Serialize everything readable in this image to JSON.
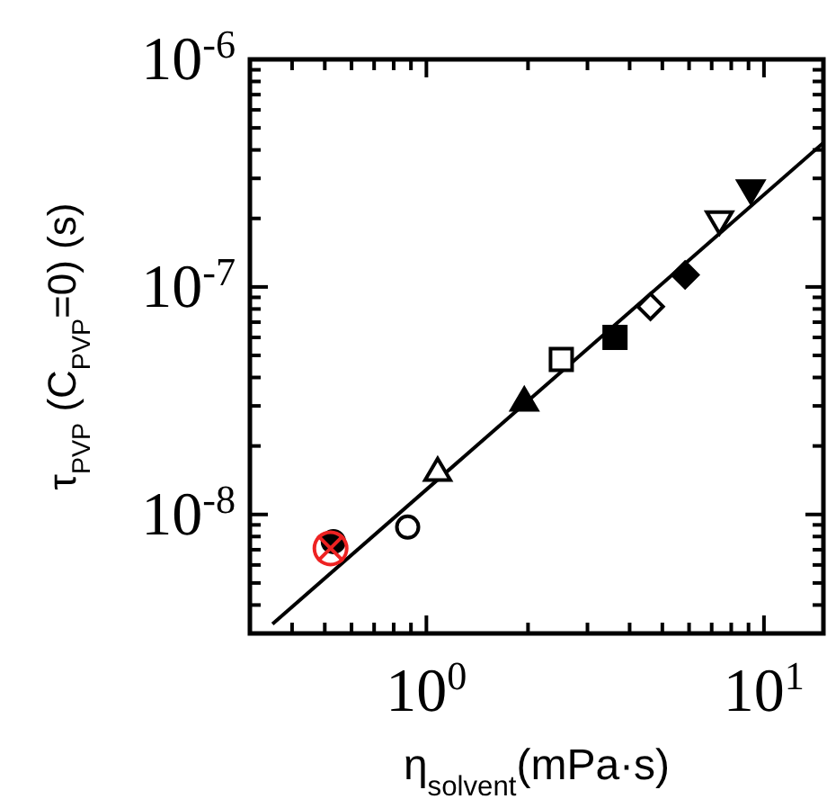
{
  "chart_data": {
    "type": "scatter",
    "xlabel": "η$_{solvent}$(mPa·s)",
    "ylabel": "τ$_{PVP}$ (C$_{PVP}$=0) (s)",
    "log": "xy",
    "grid": false,
    "xlim": [
      0.3,
      15
    ],
    "ylim": [
      3e-09,
      1e-06
    ],
    "xticks": [
      {
        "value": 0.3,
        "label": null
      },
      {
        "value": 0.4,
        "label": null
      },
      {
        "value": 0.5,
        "label": null
      },
      {
        "value": 0.6,
        "label": null
      },
      {
        "value": 0.7,
        "label": null
      },
      {
        "value": 0.8,
        "label": null
      },
      {
        "value": 0.9,
        "label": null
      },
      {
        "value": 1,
        "label": "10$^{0}$"
      },
      {
        "value": 2,
        "label": null
      },
      {
        "value": 3,
        "label": null
      },
      {
        "value": 4,
        "label": null
      },
      {
        "value": 5,
        "label": null
      },
      {
        "value": 6,
        "label": null
      },
      {
        "value": 7,
        "label": null
      },
      {
        "value": 8,
        "label": null
      },
      {
        "value": 9,
        "label": null
      },
      {
        "value": 10,
        "label": "10$^{1}$"
      }
    ],
    "yticks": [
      {
        "value": 3e-09,
        "label": null
      },
      {
        "value": 4e-09,
        "label": null
      },
      {
        "value": 5e-09,
        "label": null
      },
      {
        "value": 6e-09,
        "label": null
      },
      {
        "value": 7e-09,
        "label": null
      },
      {
        "value": 8e-09,
        "label": null
      },
      {
        "value": 9e-09,
        "label": null
      },
      {
        "value": 1e-08,
        "label": "10$^{-8}$"
      },
      {
        "value": 2e-08,
        "label": null
      },
      {
        "value": 3e-08,
        "label": null
      },
      {
        "value": 4e-08,
        "label": null
      },
      {
        "value": 5e-08,
        "label": null
      },
      {
        "value": 6e-08,
        "label": null
      },
      {
        "value": 7e-08,
        "label": null
      },
      {
        "value": 8e-08,
        "label": null
      },
      {
        "value": 9e-08,
        "label": null
      },
      {
        "value": 1e-07,
        "label": "10$^{-7}$"
      },
      {
        "value": 2e-07,
        "label": null
      },
      {
        "value": 3e-07,
        "label": null
      },
      {
        "value": 4e-07,
        "label": null
      },
      {
        "value": 5e-07,
        "label": null
      },
      {
        "value": 6e-07,
        "label": null
      },
      {
        "value": 7e-07,
        "label": null
      },
      {
        "value": 8e-07,
        "label": null
      },
      {
        "value": 9e-07,
        "label": null
      },
      {
        "value": 1e-06,
        "label": "10$^{-6}$"
      }
    ],
    "series": [
      {
        "type": "line",
        "x": [
          0.35,
          15
        ],
        "values": [
          3.3e-09,
          4.3e-07
        ],
        "color": "#000000",
        "marker": "none",
        "line_style": "solid"
      },
      {
        "x": [
          0.53
        ],
        "values": [
          7.6e-09
        ],
        "color": "#000000",
        "marker": "circle"
      },
      {
        "x": [
          0.52
        ],
        "values": [
          7.1e-09
        ],
        "color": "#ee2222",
        "marker": "cross"
      },
      {
        "x": [
          0.88
        ],
        "values": [
          8.8e-09
        ],
        "color": "#ffffff",
        "marker": "circle"
      },
      {
        "x": [
          1.08
        ],
        "values": [
          1.55e-08
        ],
        "color": "#ffffff",
        "marker": "triangle"
      },
      {
        "x": [
          1.95
        ],
        "values": [
          3.15e-08
        ],
        "color": "#000000",
        "marker": "triangle"
      },
      {
        "x": [
          2.51
        ],
        "values": [
          4.8e-08
        ],
        "color": "#ffffff",
        "marker": "square"
      },
      {
        "x": [
          3.62
        ],
        "values": [
          6e-08
        ],
        "color": "#000000",
        "marker": "square"
      },
      {
        "x": [
          4.61
        ],
        "values": [
          8.2e-08
        ],
        "color": "#ffffff",
        "marker": "diamond"
      },
      {
        "x": [
          5.84
        ],
        "values": [
          1.13e-07
        ],
        "color": "#000000",
        "marker": "diamond"
      },
      {
        "x": [
          7.38
        ],
        "values": [
          1.95e-07
        ],
        "color": "#ffffff",
        "marker": "triangle-down"
      },
      {
        "x": [
          9.14
        ],
        "values": [
          2.67e-07
        ],
        "color": "#000000",
        "marker": "triangle-down"
      }
    ]
  }
}
